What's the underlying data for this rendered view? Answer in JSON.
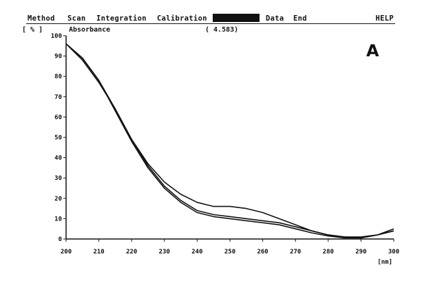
{
  "menu": {
    "items": [
      "Method",
      "Scan",
      "Integration",
      "Calibration",
      "",
      "Data",
      "End"
    ],
    "help": "HELP"
  },
  "header": {
    "y_unit": "[ % ]",
    "y_name": "Absorbance",
    "readout": "( 4.583)",
    "panel_label": "A"
  },
  "chart_data": {
    "type": "line",
    "title": "",
    "xlabel": "[nm]",
    "ylabel": "Absorbance [ % ]",
    "xlim": [
      200,
      300
    ],
    "ylim": [
      0,
      100
    ],
    "x_ticks": [
      200,
      210,
      220,
      230,
      240,
      250,
      260,
      270,
      280,
      290,
      300
    ],
    "y_ticks": [
      0,
      10,
      20,
      30,
      40,
      50,
      60,
      70,
      80,
      90,
      100
    ],
    "grid": false,
    "series": [
      {
        "x": [
          200,
          205,
          210,
          215,
          220,
          225,
          230,
          235,
          240,
          245,
          250,
          255,
          260,
          265,
          270,
          275,
          280,
          285,
          290,
          295,
          300
        ],
        "y": [
          96,
          88,
          77,
          64,
          49,
          37,
          28,
          22,
          18,
          16,
          16,
          15,
          13,
          10,
          7,
          4,
          2,
          1,
          1,
          2,
          5
        ]
      },
      {
        "x": [
          200,
          205,
          210,
          215,
          220,
          225,
          230,
          235,
          240,
          245,
          250,
          255,
          260,
          265,
          270,
          275,
          280,
          285,
          290,
          295,
          300
        ],
        "y": [
          96,
          89,
          78,
          64,
          49,
          36,
          26,
          19,
          14,
          12,
          11,
          10,
          9,
          8,
          6,
          4,
          2,
          1,
          0.5,
          2,
          4
        ]
      },
      {
        "x": [
          200,
          205,
          210,
          215,
          220,
          225,
          230,
          235,
          240,
          245,
          250,
          255,
          260,
          265,
          270,
          275,
          280,
          285,
          290,
          295,
          300
        ],
        "y": [
          96,
          89,
          78,
          63,
          48,
          35,
          25,
          18,
          13,
          11,
          10,
          9,
          8,
          7,
          5,
          3,
          1.5,
          0.5,
          0.5,
          2,
          4
        ]
      }
    ],
    "line_color": "#111111"
  }
}
